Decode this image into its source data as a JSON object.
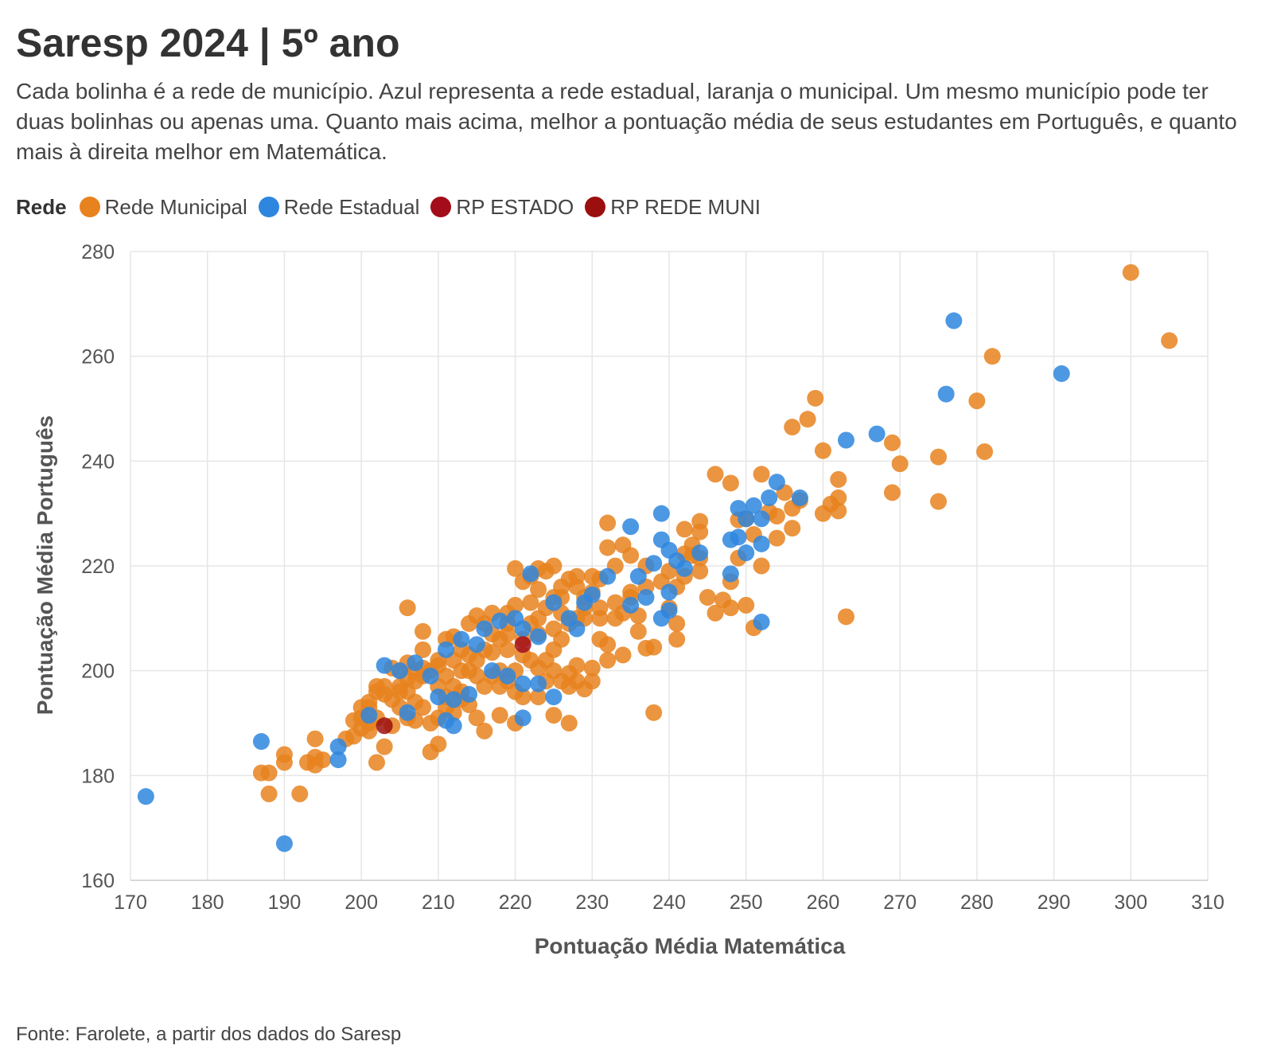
{
  "title": "Saresp 2024 | 5º ano",
  "subtitle": "Cada bolinha é a rede de município. Azul representa a rede estadual, laranja o municipal. Um mesmo município pode ter duas bolinhas ou apenas uma. Quanto mais acima, melhor a pontuação média de seus estudantes em Português, e quanto mais à direita melhor em Matemática.",
  "legend": {
    "title": "Rede",
    "items": [
      {
        "label": "Rede Municipal",
        "color": "#e8821e"
      },
      {
        "label": "Rede Estadual",
        "color": "#2e86de"
      },
      {
        "label": "RP ESTADO",
        "color": "#a30d1a"
      },
      {
        "label": "RP REDE MUNI",
        "color": "#9b0f0f"
      }
    ]
  },
  "source": "Fonte: Farolete, a partir dos dados do Saresp",
  "chart_data": {
    "type": "scatter",
    "xlabel": "Pontuação Média Matemática",
    "ylabel": "Pontuação Média Português",
    "xlim": [
      170,
      310
    ],
    "ylim": [
      160,
      280
    ],
    "xticks": [
      "170",
      "180",
      "190",
      "200",
      "210",
      "220",
      "230",
      "240",
      "250",
      "260",
      "270",
      "280",
      "290",
      "300",
      "310"
    ],
    "yticks": [
      "160",
      "180",
      "200",
      "220",
      "240",
      "260",
      "280"
    ],
    "grid": true,
    "legend_position": "top-left",
    "series": [
      {
        "name": "Rede Municipal",
        "color": "#e8821e",
        "points": [
          [
            300,
            276
          ],
          [
            305,
            263
          ],
          [
            282,
            260
          ],
          [
            259,
            252
          ],
          [
            280,
            251.5
          ],
          [
            258,
            248
          ],
          [
            256,
            246.5
          ],
          [
            269,
            243.5
          ],
          [
            260,
            242
          ],
          [
            270,
            239.5
          ],
          [
            281,
            241.8
          ],
          [
            275,
            240.8
          ],
          [
            262,
            236.5
          ],
          [
            269,
            234
          ],
          [
            275,
            232.3
          ],
          [
            262,
            233
          ],
          [
            261,
            231.8
          ],
          [
            262,
            230.5
          ],
          [
            260,
            230
          ],
          [
            257,
            232.5
          ],
          [
            256,
            231
          ],
          [
            255,
            234
          ],
          [
            253,
            230.3
          ],
          [
            254,
            229.5
          ],
          [
            256,
            227.2
          ],
          [
            254,
            225.3
          ],
          [
            252,
            237.5
          ],
          [
            246,
            237.5
          ],
          [
            248,
            235.8
          ],
          [
            249,
            228.8
          ],
          [
            250,
            229
          ],
          [
            251,
            226
          ],
          [
            249,
            221.5
          ],
          [
            252,
            220
          ],
          [
            248,
            217
          ],
          [
            247,
            213.5
          ],
          [
            250,
            212.5
          ],
          [
            248,
            212
          ],
          [
            246,
            211
          ],
          [
            251,
            208.2
          ],
          [
            263,
            210.3
          ],
          [
            245,
            214
          ],
          [
            244,
            228.5
          ],
          [
            244,
            226.5
          ],
          [
            243,
            224
          ],
          [
            243,
            222
          ],
          [
            244,
            221.5
          ],
          [
            244,
            219
          ],
          [
            242,
            227
          ],
          [
            242,
            222.3
          ],
          [
            242,
            218
          ],
          [
            240,
            219
          ],
          [
            241,
            216
          ],
          [
            240,
            212
          ],
          [
            241,
            209
          ],
          [
            241,
            206
          ],
          [
            238,
            192
          ],
          [
            238,
            204.5
          ],
          [
            237,
            204.3
          ],
          [
            236,
            207.5
          ],
          [
            236,
            210.5
          ],
          [
            235,
            214
          ],
          [
            234,
            211
          ],
          [
            237,
            220
          ],
          [
            233,
            220
          ],
          [
            232,
            228.2
          ],
          [
            232,
            223.5
          ],
          [
            234,
            224
          ],
          [
            235,
            222
          ],
          [
            231,
            217.5
          ],
          [
            230,
            218
          ],
          [
            228,
            218
          ],
          [
            227,
            217.5
          ],
          [
            226,
            216
          ],
          [
            225,
            214
          ],
          [
            230,
            215
          ],
          [
            229,
            212
          ],
          [
            228,
            210
          ],
          [
            226,
            211
          ],
          [
            224,
            212
          ],
          [
            223,
            210
          ],
          [
            222,
            209
          ],
          [
            231,
            206
          ],
          [
            232,
            205
          ],
          [
            232,
            202
          ],
          [
            234,
            203
          ],
          [
            233,
            210
          ],
          [
            231,
            210
          ],
          [
            230,
            200.5
          ],
          [
            228,
            198
          ],
          [
            227,
            197
          ],
          [
            226,
            206
          ],
          [
            225,
            204
          ],
          [
            224,
            202
          ],
          [
            222,
            218
          ],
          [
            223,
            219.5
          ],
          [
            223,
            215.5
          ],
          [
            220,
            219.5
          ],
          [
            221,
            217
          ],
          [
            224,
            219
          ],
          [
            225,
            220
          ],
          [
            220,
            212.5
          ],
          [
            219,
            209
          ],
          [
            219,
            211
          ],
          [
            217,
            211
          ],
          [
            216,
            209
          ],
          [
            214,
            209
          ],
          [
            215,
            210.5
          ],
          [
            212,
            206.5
          ],
          [
            211,
            206
          ],
          [
            213,
            204
          ],
          [
            218,
            206
          ],
          [
            216,
            204
          ],
          [
            214,
            203
          ],
          [
            212,
            202
          ],
          [
            210,
            202
          ],
          [
            209,
            200
          ],
          [
            208,
            199
          ],
          [
            207,
            198
          ],
          [
            208,
            200.5
          ],
          [
            208,
            204
          ],
          [
            208,
            207.5
          ],
          [
            206,
            212
          ],
          [
            210,
            197
          ],
          [
            211,
            195
          ],
          [
            212,
            197
          ],
          [
            213,
            196
          ],
          [
            214,
            200
          ],
          [
            215,
            199
          ],
          [
            216,
            197
          ],
          [
            217,
            199
          ],
          [
            218,
            200
          ],
          [
            219,
            198
          ],
          [
            220,
            200
          ],
          [
            221,
            203
          ],
          [
            222,
            202
          ],
          [
            223,
            200.5
          ],
          [
            224,
            198
          ],
          [
            225,
            200
          ],
          [
            226,
            198
          ],
          [
            227,
            199.5
          ],
          [
            229,
            196.5
          ],
          [
            230,
            198
          ],
          [
            228,
            201
          ],
          [
            218,
            197
          ],
          [
            220,
            196
          ],
          [
            221,
            195
          ],
          [
            223,
            195
          ],
          [
            225,
            191.5
          ],
          [
            227,
            190
          ],
          [
            220,
            190
          ],
          [
            218,
            191.5
          ],
          [
            216,
            188.5
          ],
          [
            215,
            191
          ],
          [
            214,
            193.5
          ],
          [
            213,
            194.5
          ],
          [
            212,
            192
          ],
          [
            211,
            193
          ],
          [
            210,
            191
          ],
          [
            209,
            190
          ],
          [
            210,
            186
          ],
          [
            209,
            184.5
          ],
          [
            207,
            190.5
          ],
          [
            206,
            191
          ],
          [
            205,
            193
          ],
          [
            204,
            194.5
          ],
          [
            203,
            195.5
          ],
          [
            202,
            196
          ],
          [
            201,
            194
          ],
          [
            202,
            191
          ],
          [
            201,
            190
          ],
          [
            200,
            191
          ],
          [
            199,
            190.5
          ],
          [
            199,
            187.5
          ],
          [
            198,
            187
          ],
          [
            200,
            189
          ],
          [
            201,
            188.5
          ],
          [
            202,
            182.5
          ],
          [
            203,
            185.5
          ],
          [
            204,
            189.5
          ],
          [
            205,
            197
          ],
          [
            206,
            198.5
          ],
          [
            207,
            200
          ],
          [
            204,
            200.5
          ],
          [
            205,
            196
          ],
          [
            206,
            196
          ],
          [
            207,
            194
          ],
          [
            208,
            193
          ],
          [
            203,
            197
          ],
          [
            202,
            197
          ],
          [
            201,
            193
          ],
          [
            200,
            193
          ],
          [
            194,
            187
          ],
          [
            194,
            183.5
          ],
          [
            194,
            182
          ],
          [
            195,
            183
          ],
          [
            193,
            182.5
          ],
          [
            190,
            184
          ],
          [
            190,
            182.5
          ],
          [
            188,
            180.5
          ],
          [
            187,
            180.5
          ],
          [
            188,
            176.5
          ],
          [
            192,
            176.5
          ],
          [
            205,
            200
          ],
          [
            206,
            201.5
          ],
          [
            210,
            201
          ],
          [
            211,
            199
          ],
          [
            213,
            200
          ],
          [
            215,
            202
          ],
          [
            217,
            203.5
          ],
          [
            219,
            204
          ],
          [
            221,
            206
          ],
          [
            223,
            207
          ],
          [
            225,
            208
          ],
          [
            227,
            209
          ],
          [
            229,
            210
          ],
          [
            231,
            212
          ],
          [
            233,
            213
          ],
          [
            235,
            215
          ],
          [
            237,
            216
          ],
          [
            239,
            217
          ],
          [
            229,
            214
          ],
          [
            228,
            216
          ],
          [
            226,
            214
          ],
          [
            222,
            213
          ],
          [
            219,
            207
          ],
          [
            217,
            207
          ]
        ]
      },
      {
        "name": "Rede Estadual",
        "color": "#2e86de",
        "points": [
          [
            277,
            266.8
          ],
          [
            291,
            256.7
          ],
          [
            276,
            252.8
          ],
          [
            267,
            245.2
          ],
          [
            263,
            244
          ],
          [
            257,
            233
          ],
          [
            253,
            233
          ],
          [
            254,
            236
          ],
          [
            251,
            231.5
          ],
          [
            249,
            231
          ],
          [
            250,
            229
          ],
          [
            252,
            229
          ],
          [
            252,
            224.2
          ],
          [
            250,
            222.5
          ],
          [
            249,
            225.5
          ],
          [
            248,
            225
          ],
          [
            248,
            218.5
          ],
          [
            239,
            230
          ],
          [
            235,
            227.5
          ],
          [
            239,
            225
          ],
          [
            240,
            223
          ],
          [
            241,
            221
          ],
          [
            242,
            219.5
          ],
          [
            244,
            222.5
          ],
          [
            238,
            220.5
          ],
          [
            236,
            218
          ],
          [
            237,
            214
          ],
          [
            235,
            212.5
          ],
          [
            240,
            215
          ],
          [
            240,
            211.5
          ],
          [
            239,
            210
          ],
          [
            252,
            209.3
          ],
          [
            232,
            218
          ],
          [
            230,
            214.5
          ],
          [
            229,
            213
          ],
          [
            227,
            210
          ],
          [
            228,
            208
          ],
          [
            225,
            213
          ],
          [
            222,
            218.5
          ],
          [
            220,
            210
          ],
          [
            221,
            208
          ],
          [
            223,
            206.5
          ],
          [
            218,
            209.5
          ],
          [
            216,
            208
          ],
          [
            213,
            206
          ],
          [
            211,
            204
          ],
          [
            215,
            205
          ],
          [
            217,
            200
          ],
          [
            219,
            199
          ],
          [
            221,
            197.5
          ],
          [
            223,
            197.5
          ],
          [
            225,
            195
          ],
          [
            221,
            191
          ],
          [
            214,
            195.5
          ],
          [
            212,
            194.5
          ],
          [
            210,
            195
          ],
          [
            209,
            199
          ],
          [
            207,
            201.5
          ],
          [
            205,
            200
          ],
          [
            203,
            201
          ],
          [
            206,
            192
          ],
          [
            211,
            190.5
          ],
          [
            212,
            189.5
          ],
          [
            201,
            191.5
          ],
          [
            197,
            185.5
          ],
          [
            197,
            183
          ],
          [
            187,
            186.5
          ],
          [
            190,
            167
          ],
          [
            172,
            176
          ]
        ]
      },
      {
        "name": "RP ESTADO",
        "color": "#a30d1a",
        "points": [
          [
            221,
            205
          ]
        ]
      },
      {
        "name": "RP REDE MUNI",
        "color": "#9b0f0f",
        "points": [
          [
            203,
            189.5
          ]
        ]
      }
    ]
  }
}
